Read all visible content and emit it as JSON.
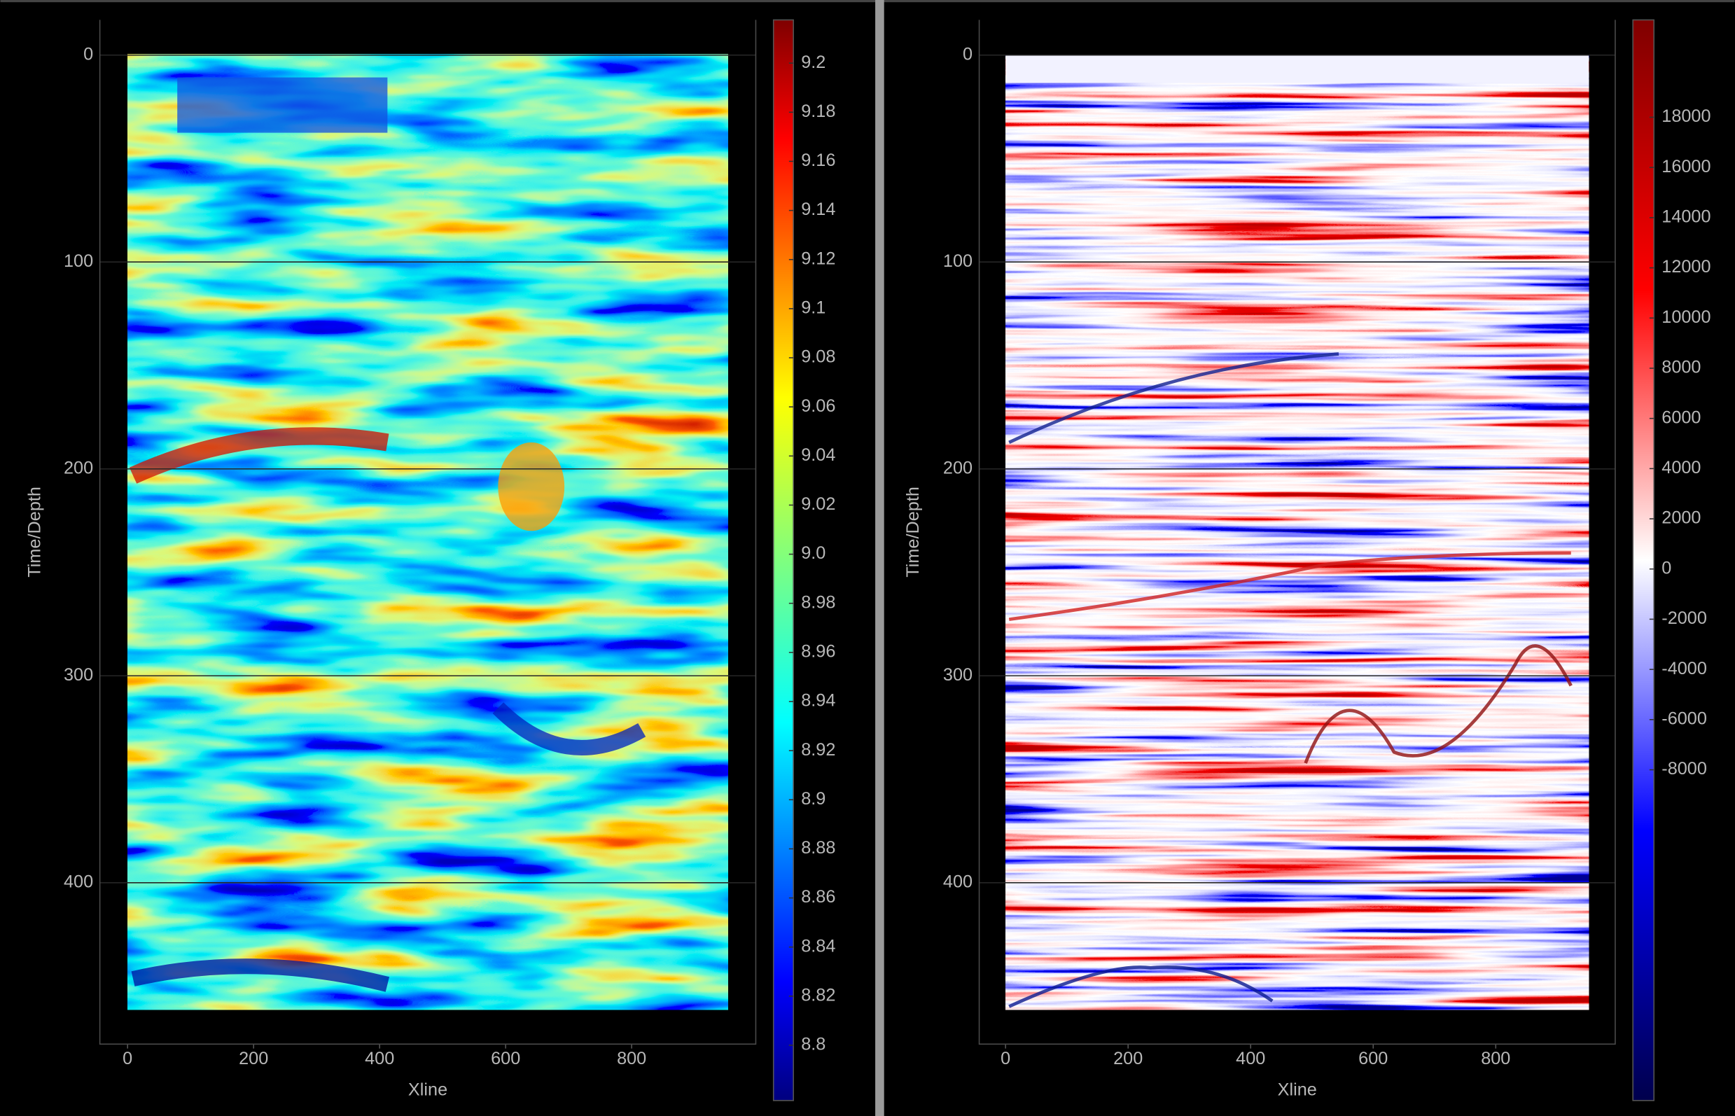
{
  "chart_data": [
    {
      "type": "heatmap",
      "xlabel": "Xline",
      "ylabel": "Time/Depth",
      "xlim": [
        -44,
        997
      ],
      "xticks": [
        0,
        200,
        400,
        600,
        800
      ],
      "ylim": [
        478,
        -17
      ],
      "yticks": [
        0,
        100,
        200,
        300,
        400
      ],
      "grid": true,
      "colorbar": {
        "colormap": "jet",
        "lim": [
          8.7775,
          9.2176
        ],
        "ticks": [
          8.8,
          8.82,
          8.84,
          8.86,
          8.88,
          8.9,
          8.92,
          8.94,
          8.96,
          8.98,
          {
            "value": 9,
            "label": "9.0"
          },
          9.02,
          9.04,
          9.06,
          9.08,
          9.1,
          9.12,
          9.14,
          9.16,
          9.18,
          9.2
        ]
      }
    },
    {
      "type": "heatmap",
      "xlabel": "Xline",
      "ylabel": "Time/Depth",
      "xlim": [
        -43,
        995
      ],
      "xticks": [
        0,
        200,
        400,
        600,
        800
      ],
      "ylim": [
        478,
        -17
      ],
      "yticks": [
        0,
        100,
        200,
        300,
        400
      ],
      "grid": true,
      "colorbar": {
        "colormap": "seismic",
        "lim": [
          -21177,
          21878
        ],
        "ticks": [
          -8000,
          -6000,
          -4000,
          -2000,
          0,
          2000,
          4000,
          6000,
          8000,
          10000,
          12000,
          14000,
          16000,
          18000
        ]
      }
    }
  ]
}
